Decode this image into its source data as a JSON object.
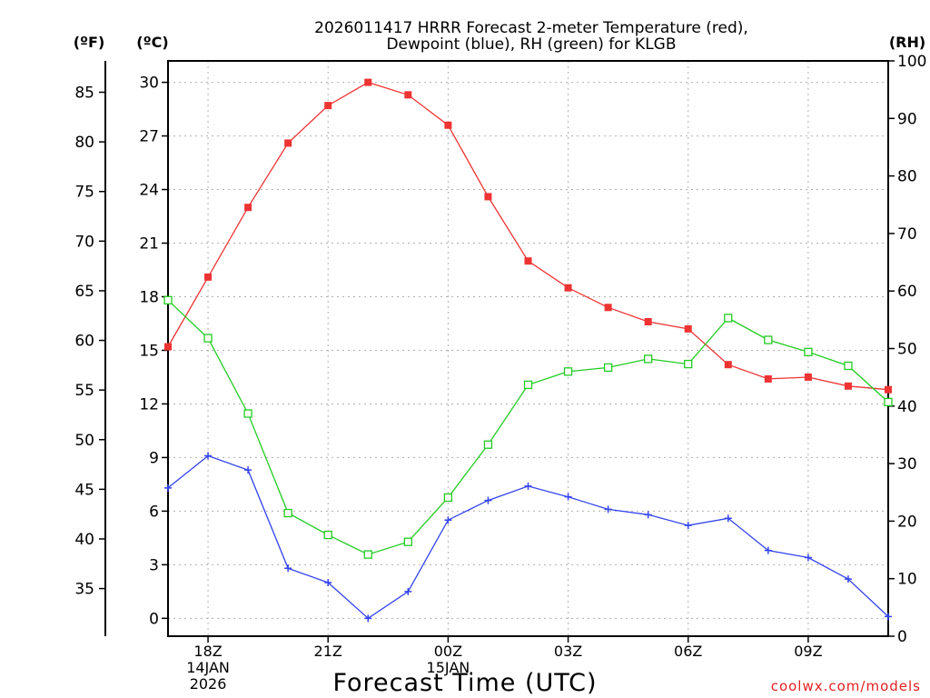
{
  "chart_data": {
    "type": "line",
    "title_line1": "2026011417 HRRR Forecast 2-meter Temperature (red),",
    "title_line2": "Dewpoint (blue), RH (green) for KLGB",
    "xlabel": "Forecast Time (UTC)",
    "watermark": "coolwx.com/models",
    "units": {
      "fahrenheit": "(ºF)",
      "celsius": "(ºC)",
      "rh": "(RH)"
    },
    "x_hours": [
      17,
      18,
      19,
      20,
      21,
      22,
      23,
      24,
      25,
      26,
      27,
      28,
      29,
      30,
      31,
      32,
      33,
      34,
      35
    ],
    "x_range": [
      17,
      35
    ],
    "x_ticks": [
      {
        "hour": 18,
        "label": "18Z",
        "sub1": "14JAN",
        "sub2": "2026"
      },
      {
        "hour": 21,
        "label": "21Z",
        "sub1": "",
        "sub2": ""
      },
      {
        "hour": 24,
        "label": "00Z",
        "sub1": "15JAN",
        "sub2": ""
      },
      {
        "hour": 27,
        "label": "03Z",
        "sub1": "",
        "sub2": ""
      },
      {
        "hour": 30,
        "label": "06Z",
        "sub1": "",
        "sub2": ""
      },
      {
        "hour": 33,
        "label": "09Z",
        "sub1": "",
        "sub2": ""
      }
    ],
    "celsius_range": [
      -1,
      31.2
    ],
    "celsius_ticks": [
      "0",
      "3",
      "6",
      "9",
      "12",
      "15",
      "18",
      "21",
      "24",
      "27",
      "30"
    ],
    "fahrenheit_ticks": [
      "35",
      "40",
      "45",
      "50",
      "55",
      "60",
      "65",
      "70",
      "75",
      "80",
      "85"
    ],
    "rh_range": [
      0,
      100
    ],
    "rh_ticks": [
      "0",
      "10",
      "20",
      "30",
      "40",
      "50",
      "60",
      "70",
      "80",
      "90",
      "100"
    ],
    "series": [
      {
        "name": "Temperature (°C)",
        "color": "#ee3333",
        "marker": "filled-square",
        "axis": "celsius",
        "values": [
          15.2,
          19.1,
          23.0,
          26.6,
          28.7,
          30.0,
          29.3,
          27.6,
          23.6,
          20.0,
          18.5,
          17.4,
          16.6,
          16.2,
          14.2,
          13.4,
          13.5,
          13.0,
          12.8
        ]
      },
      {
        "name": "Dewpoint (°C)",
        "color": "#3344ee",
        "marker": "plus",
        "axis": "celsius",
        "values": [
          7.3,
          9.1,
          8.3,
          2.8,
          2.0,
          0.0,
          1.5,
          5.5,
          6.6,
          7.4,
          6.8,
          6.1,
          5.8,
          5.2,
          5.6,
          3.8,
          3.4,
          2.2,
          0.1
        ]
      },
      {
        "name": "RH (%)",
        "color": "#22cc22",
        "marker": "open-square",
        "axis": "rh",
        "values": [
          58.4,
          51.8,
          38.7,
          21.4,
          17.6,
          14.2,
          16.4,
          24.1,
          33.3,
          43.7,
          46.0,
          46.7,
          48.2,
          47.3,
          55.3,
          51.5,
          49.4,
          47.0,
          40.7
        ]
      }
    ]
  }
}
